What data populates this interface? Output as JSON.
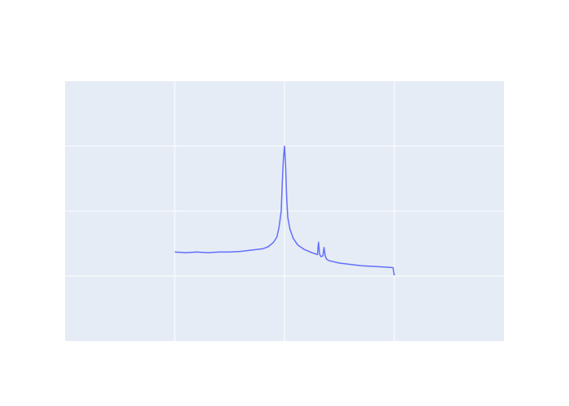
{
  "chart_data": {
    "type": "line",
    "title": "",
    "xlabel": "",
    "ylabel": "",
    "xlim": [
      -1,
      3
    ],
    "ylim": [
      -1,
      3
    ],
    "grid": true,
    "plot_background": "#e5ecf6",
    "page_background": "#ffffff",
    "grid_color": "#ffffff",
    "x_grid_values": [
      0,
      1,
      2
    ],
    "y_grid_values": [
      0,
      1,
      2
    ],
    "series": [
      {
        "color": "#636efa",
        "x": [
          0.0,
          0.1,
          0.2,
          0.3,
          0.4,
          0.5,
          0.6,
          0.7,
          0.8,
          0.85,
          0.9,
          0.93,
          0.95,
          0.97,
          0.98,
          0.99,
          1.0,
          1.01,
          1.02,
          1.03,
          1.05,
          1.08,
          1.12,
          1.18,
          1.25,
          1.3,
          1.31,
          1.32,
          1.33,
          1.35,
          1.36,
          1.37,
          1.38,
          1.4,
          1.5,
          1.6,
          1.7,
          1.8,
          1.9,
          1.99,
          2.0
        ],
        "y": [
          0.37,
          0.36,
          0.37,
          0.36,
          0.37,
          0.37,
          0.38,
          0.4,
          0.42,
          0.45,
          0.52,
          0.6,
          0.75,
          1.0,
          1.45,
          1.8,
          2.0,
          1.7,
          1.2,
          0.9,
          0.72,
          0.58,
          0.48,
          0.41,
          0.36,
          0.33,
          0.52,
          0.34,
          0.3,
          0.31,
          0.44,
          0.32,
          0.27,
          0.24,
          0.2,
          0.18,
          0.16,
          0.15,
          0.14,
          0.13,
          0.01
        ]
      }
    ]
  }
}
